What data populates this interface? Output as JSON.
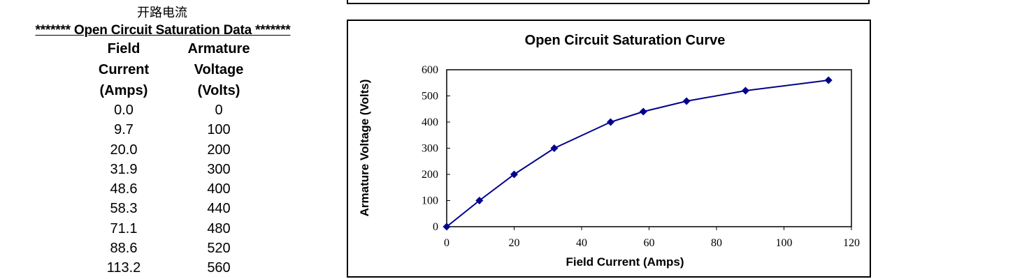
{
  "table": {
    "chinese_title": "开路电流",
    "title": "******* Open Circuit Saturation Data *******",
    "col1_header": [
      "Field",
      "Current",
      "(Amps)"
    ],
    "col2_header": [
      "Armature",
      "Voltage",
      "(Volts)"
    ],
    "rows": [
      [
        "0.0",
        "0"
      ],
      [
        "9.7",
        "100"
      ],
      [
        "20.0",
        "200"
      ],
      [
        "31.9",
        "300"
      ],
      [
        "48.6",
        "400"
      ],
      [
        "58.3",
        "440"
      ],
      [
        "71.1",
        "480"
      ],
      [
        "88.6",
        "520"
      ],
      [
        "113.2",
        "560"
      ]
    ]
  },
  "chart_data": {
    "type": "line",
    "title": "Open Circuit Saturation Curve",
    "xlabel": "Field Current (Amps)",
    "ylabel": "Armature Voltage (Volts)",
    "xlim": [
      0,
      120
    ],
    "ylim": [
      0,
      600
    ],
    "xticks": [
      0,
      20,
      40,
      60,
      80,
      100,
      120
    ],
    "yticks": [
      0,
      100,
      200,
      300,
      400,
      500,
      600
    ],
    "grid": false,
    "legend": "none",
    "series": [
      {
        "x": [
          0.0,
          9.7,
          20.0,
          31.9,
          48.6,
          58.3,
          71.1,
          88.6,
          113.2
        ],
        "y": [
          0,
          100,
          200,
          300,
          400,
          440,
          480,
          520,
          560
        ],
        "color": "#00008B",
        "marker": "diamond"
      }
    ]
  }
}
